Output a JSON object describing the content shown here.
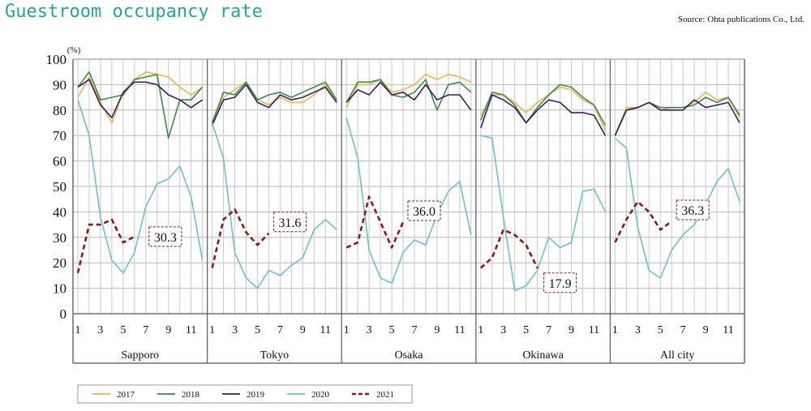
{
  "title": "Guestroom occupancy rate",
  "source": "Source: Ohta publications Co., Ltd.",
  "chart_data": {
    "type": "line",
    "y_unit": "(%)",
    "ylim": [
      0,
      100
    ],
    "y_ticks": [
      "0",
      "10",
      "20",
      "30",
      "40",
      "50",
      "60",
      "70",
      "80",
      "90",
      "100"
    ],
    "x_tick_labels": [
      "1",
      "3",
      "5",
      "7",
      "9",
      "11"
    ],
    "grid": true,
    "legend_position": "bottom-left",
    "colors": {
      "2017": "#e8b84a",
      "2018": "#3a8a4e",
      "2019": "#3c1f5e",
      "2020": "#6cc0cf",
      "2021": "#8b1a1a"
    },
    "legend": [
      "2017",
      "2018",
      "2019",
      "2020",
      "2021"
    ],
    "panels": [
      {
        "name": "Sapporo",
        "annotation": "30.3",
        "series": [
          {
            "name": "2017",
            "values": [
              85,
              93,
              83,
              75,
              87,
              92,
              95,
              94,
              93,
              89,
              86,
              89
            ]
          },
          {
            "name": "2018",
            "values": [
              89,
              95,
              84,
              85,
              86,
              92,
              93,
              94,
              69,
              84,
              84,
              89
            ]
          },
          {
            "name": "2019",
            "values": [
              89,
              92,
              82,
              77,
              87,
              91,
              91,
              90,
              86,
              84,
              81,
              84
            ]
          },
          {
            "name": "2020",
            "values": [
              84,
              70,
              38,
              21,
              16,
              24,
              42,
              51,
              53,
              58,
              46,
              21
            ]
          },
          {
            "name": "2021",
            "values": [
              16,
              35,
              35,
              37,
              28,
              30.3
            ]
          }
        ]
      },
      {
        "name": "Tokyo",
        "annotation": "31.6",
        "series": [
          {
            "name": "2017",
            "values": [
              75,
              85,
              88,
              91,
              84,
              82,
              85,
              83,
              83,
              86,
              90,
              83
            ]
          },
          {
            "name": "2018",
            "values": [
              75,
              87,
              86,
              91,
              84,
              86,
              87,
              85,
              87,
              89,
              91,
              84
            ]
          },
          {
            "name": "2019",
            "values": [
              74,
              84,
              85,
              90,
              83,
              81,
              86,
              84,
              85,
              87,
              89,
              83
            ]
          },
          {
            "name": "2020",
            "values": [
              75,
              61,
              24,
              14,
              10,
              17,
              15,
              19,
              22,
              33,
              37,
              33
            ]
          },
          {
            "name": "2021",
            "values": [
              18,
              37,
              41,
              32,
              27,
              31.6
            ]
          }
        ]
      },
      {
        "name": "Osaka",
        "annotation": "36.0",
        "series": [
          {
            "name": "2017",
            "values": [
              81,
              90,
              90,
              92,
              87,
              88,
              90,
              94,
              92,
              94,
              93,
              91
            ]
          },
          {
            "name": "2018",
            "values": [
              83,
              91,
              91,
              92,
              86,
              85,
              87,
              92,
              80,
              90,
              91,
              87
            ]
          },
          {
            "name": "2019",
            "values": [
              83,
              88,
              86,
              91,
              86,
              87,
              84,
              90,
              84,
              86,
              86,
              80
            ]
          },
          {
            "name": "2020",
            "values": [
              77,
              61,
              25,
              14,
              12,
              24,
              29,
              27,
              39,
              48,
              52,
              31
            ]
          },
          {
            "name": "2021",
            "values": [
              26,
              28,
              46,
              36,
              26,
              36.0
            ]
          }
        ]
      },
      {
        "name": "Okinawa",
        "annotation": "17.9",
        "series": [
          {
            "name": "2017",
            "values": [
              78,
              86,
              86,
              83,
              79,
              83,
              86,
              89,
              88,
              84,
              82,
              72
            ]
          },
          {
            "name": "2018",
            "values": [
              76,
              87,
              86,
              82,
              75,
              81,
              86,
              90,
              89,
              85,
              82,
              74
            ]
          },
          {
            "name": "2019",
            "values": [
              73,
              86,
              84,
              81,
              75,
              80,
              84,
              83,
              79,
              79,
              78,
              70
            ]
          },
          {
            "name": "2020",
            "values": [
              70,
              69,
              38,
              9,
              11,
              17,
              30,
              26,
              28,
              48,
              49,
              40
            ]
          },
          {
            "name": "2021",
            "values": [
              18,
              22,
              33,
              31,
              27,
              17.9
            ]
          }
        ]
      },
      {
        "name": "All city",
        "annotation": "36.3",
        "series": [
          {
            "name": "2017",
            "values": [
              70,
              81,
              81,
              83,
              80,
              81,
              81,
              83,
              87,
              84,
              85,
              77
            ]
          },
          {
            "name": "2018",
            "values": [
              70,
              80,
              81,
              83,
              81,
              81,
              81,
              82,
              85,
              83,
              85,
              78
            ]
          },
          {
            "name": "2019",
            "values": [
              70,
              80,
              81,
              83,
              80,
              80,
              80,
              84,
              81,
              82,
              83,
              75
            ]
          },
          {
            "name": "2020",
            "values": [
              69,
              65,
              34,
              17,
              14,
              25,
              31,
              35,
              43,
              52,
              57,
              44
            ]
          },
          {
            "name": "2021",
            "values": [
              28,
              37,
              44,
              40,
              33,
              36.3
            ]
          }
        ]
      }
    ]
  }
}
